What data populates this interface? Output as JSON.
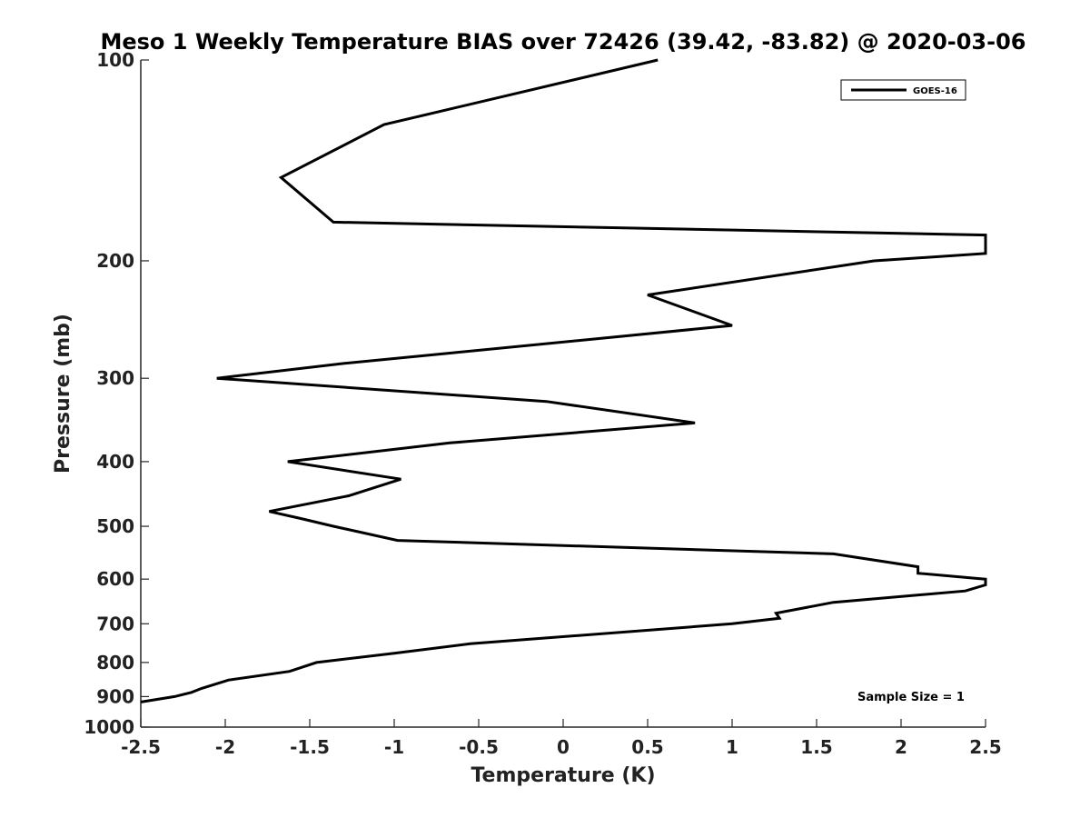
{
  "chart_data": {
    "type": "line",
    "title": "Meso 1 Weekly Temperature BIAS over 72426 (39.42, -83.82) @ 2020-03-06",
    "xlabel": "Temperature (K)",
    "ylabel": "Pressure (mb)",
    "xlim": [
      -2.5,
      2.5
    ],
    "ylim": [
      100,
      1000
    ],
    "y_scale": "log",
    "y_reversed": true,
    "grid": false,
    "x_ticks": [
      -2.5,
      -2,
      -1.5,
      -1,
      -0.5,
      0,
      0.5,
      1,
      1.5,
      2,
      2.5
    ],
    "x_tick_labels": [
      "-2.5",
      "-2",
      "-1.5",
      "-1",
      "-0.5",
      "0",
      "0.5",
      "1",
      "1.5",
      "2",
      "2.5"
    ],
    "y_ticks": [
      100,
      200,
      300,
      400,
      500,
      600,
      700,
      800,
      900,
      1000
    ],
    "y_tick_labels": [
      "100",
      "200",
      "300",
      "400",
      "500",
      "600",
      "700",
      "800",
      "900",
      "1000"
    ],
    "legend": {
      "position": "top-right",
      "entries": [
        "GOES-16"
      ]
    },
    "annotation": "Sample Size = 1",
    "line_color": "#000000",
    "series": [
      {
        "name": "GOES-16",
        "points": [
          [
            0.56,
            100
          ],
          [
            -1.06,
            125
          ],
          [
            -1.67,
            150
          ],
          [
            -1.36,
            175
          ],
          [
            2.5,
            183
          ],
          [
            2.5,
            195
          ],
          [
            1.84,
            200
          ],
          [
            0.5,
            225
          ],
          [
            1.0,
            250
          ],
          [
            -0.67,
            275
          ],
          [
            -1.3,
            285
          ],
          [
            -2.05,
            300
          ],
          [
            -0.1,
            325
          ],
          [
            0.78,
            350
          ],
          [
            -0.67,
            375
          ],
          [
            -1.63,
            400
          ],
          [
            -0.96,
            425
          ],
          [
            -1.27,
            450
          ],
          [
            -1.74,
            475
          ],
          [
            -1.55,
            487
          ],
          [
            -1.36,
            500
          ],
          [
            -0.98,
            525
          ],
          [
            1.6,
            550
          ],
          [
            2.1,
            575
          ],
          [
            2.1,
            588
          ],
          [
            2.5,
            600
          ],
          [
            2.5,
            612
          ],
          [
            2.38,
            625
          ],
          [
            1.6,
            650
          ],
          [
            1.26,
            675
          ],
          [
            1.28,
            687
          ],
          [
            1.0,
            700
          ],
          [
            -0.55,
            750
          ],
          [
            -1.0,
            775
          ],
          [
            -1.46,
            800
          ],
          [
            -1.62,
            825
          ],
          [
            -1.98,
            850
          ],
          [
            -2.14,
            875
          ],
          [
            -2.2,
            887
          ],
          [
            -2.3,
            900
          ],
          [
            -2.5,
            917
          ]
        ]
      }
    ]
  }
}
